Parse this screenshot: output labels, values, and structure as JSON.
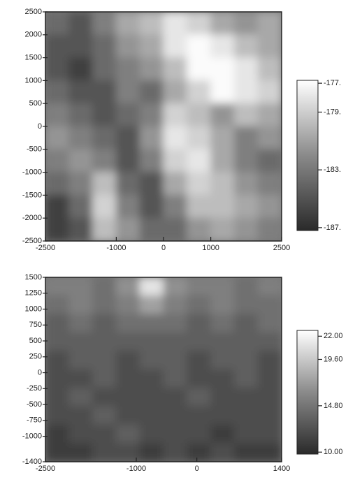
{
  "chart_data": [
    {
      "type": "heatmap",
      "xlim": [
        -2500,
        2500
      ],
      "ylim": [
        -2500,
        2500
      ],
      "xticks": [
        -2500,
        -1000,
        0,
        1000,
        2500
      ],
      "yticks": [
        2500,
        2000,
        1500,
        1000,
        500,
        0,
        -500,
        -1000,
        -1500,
        -2000,
        -2500
      ],
      "z": [
        [
          -184,
          -185,
          -183,
          -181,
          -180,
          -178,
          -179,
          -181,
          -182,
          -181
        ],
        [
          -185,
          -185,
          -184,
          -182,
          -181,
          -178,
          -177,
          -178,
          -180,
          -181
        ],
        [
          -185,
          -186,
          -184,
          -183,
          -182,
          -180,
          -177,
          -177,
          -178,
          -180
        ],
        [
          -184,
          -185,
          -185,
          -183,
          -184,
          -181,
          -179,
          -177,
          -178,
          -179
        ],
        [
          -183,
          -184,
          -185,
          -184,
          -183,
          -179,
          -180,
          -182,
          -180,
          -181
        ],
        [
          -182,
          -183,
          -184,
          -185,
          -182,
          -178,
          -179,
          -181,
          -183,
          -182
        ],
        [
          -183,
          -182,
          -183,
          -185,
          -183,
          -179,
          -178,
          -181,
          -183,
          -184
        ],
        [
          -184,
          -183,
          -180,
          -184,
          -185,
          -181,
          -179,
          -180,
          -182,
          -183
        ],
        [
          -186,
          -184,
          -179,
          -183,
          -185,
          -183,
          -180,
          -180,
          -181,
          -182
        ],
        [
          -186,
          -185,
          -180,
          -182,
          -184,
          -184,
          -182,
          -181,
          -182,
          -183
        ]
      ],
      "clim": [
        -187.2,
        -176.8
      ],
      "cticks": [
        {
          "value": -177,
          "label": "-177."
        },
        {
          "value": -179,
          "label": "-179."
        },
        {
          "value": -183,
          "label": "-183."
        },
        {
          "value": -187,
          "label": "-187."
        }
      ]
    },
    {
      "type": "heatmap",
      "xlim": [
        -2500,
        1400
      ],
      "ylim": [
        -1400,
        1500
      ],
      "xticks": [
        -2500,
        -1000,
        0,
        1400
      ],
      "yticks": [
        1500,
        1250,
        1000,
        750,
        500,
        250,
        0,
        -250,
        -500,
        -750,
        -1000,
        -1400
      ],
      "z": [
        [
          15,
          15,
          14,
          16,
          21,
          16,
          15,
          15,
          14,
          15
        ],
        [
          14,
          15,
          14,
          15,
          17,
          15,
          14,
          15,
          14,
          14
        ],
        [
          13,
          14,
          13,
          14,
          14,
          14,
          13,
          14,
          13,
          14
        ],
        [
          13,
          13,
          13,
          13,
          13,
          13,
          13,
          13,
          13,
          13
        ],
        [
          12,
          13,
          13,
          12,
          13,
          13,
          12,
          13,
          13,
          12
        ],
        [
          12,
          12,
          13,
          12,
          12,
          13,
          12,
          12,
          13,
          12
        ],
        [
          12,
          13,
          12,
          12,
          12,
          12,
          13,
          12,
          12,
          12
        ],
        [
          12,
          12,
          13,
          12,
          12,
          12,
          12,
          12,
          12,
          12
        ],
        [
          11,
          12,
          12,
          13,
          12,
          12,
          12,
          11,
          12,
          12
        ],
        [
          11,
          11,
          12,
          12,
          11,
          12,
          11,
          12,
          11,
          11
        ]
      ],
      "clim": [
        9.8,
        22.6
      ],
      "cticks": [
        {
          "value": 22,
          "label": "22.00"
        },
        {
          "value": 19.6,
          "label": "19.60"
        },
        {
          "value": 14.8,
          "label": "14.80"
        },
        {
          "value": 10,
          "label": "10.00"
        }
      ]
    }
  ]
}
